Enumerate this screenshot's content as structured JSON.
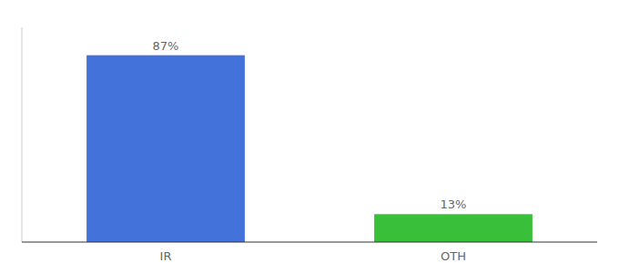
{
  "chart_data": {
    "type": "bar",
    "categories": [
      "IR",
      "OTH"
    ],
    "values": [
      87,
      13
    ],
    "value_labels": [
      "87%",
      "13%"
    ],
    "colors": [
      "#4472db",
      "#3abf3a"
    ],
    "ylim": [
      0,
      100
    ],
    "data_labels": true,
    "tick_labels": "x",
    "grid": false
  }
}
